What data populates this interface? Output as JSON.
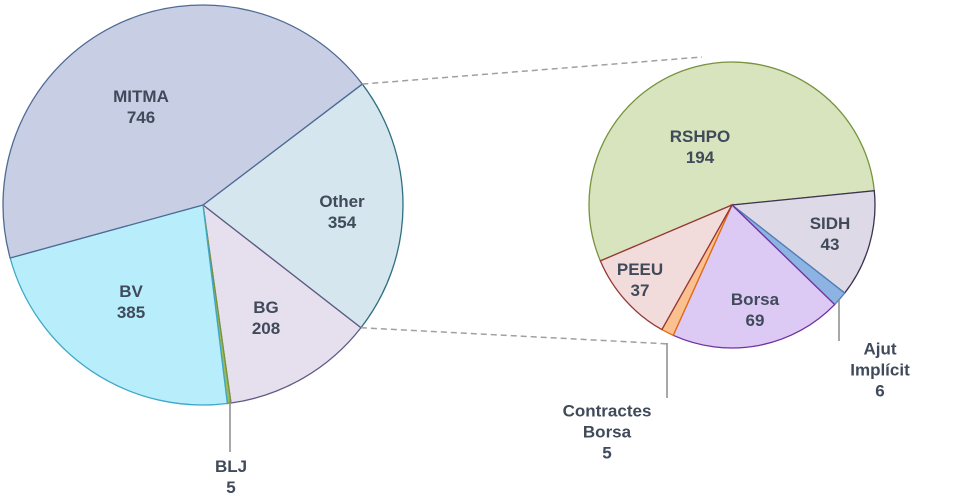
{
  "chart_data": [
    {
      "type": "pie",
      "categories": [
        "Other",
        "BG",
        "BLJ",
        "BV",
        "MITMA"
      ],
      "values": [
        354,
        208,
        5,
        385,
        746
      ],
      "colors": [
        "#d5e6ee",
        "#e6e0ee",
        "#9bbb59",
        "#b8eefc",
        "#c8cfe5"
      ],
      "strokes": [
        "#2f6f80",
        "#5f5a82",
        "#77933c",
        "#3fa8c8",
        "#4f6a94"
      ]
    },
    {
      "type": "pie",
      "categories": [
        "RSHPO",
        "SIDH",
        "Ajut Implícit",
        "Borsa",
        "Contractes Borsa",
        "PEEU"
      ],
      "values": [
        194,
        43,
        6,
        69,
        5,
        37
      ],
      "colors": [
        "#d7e4bd",
        "#ddd9e7",
        "#8db3e2",
        "#dccaf5",
        "#fac090",
        "#f2dcdb"
      ],
      "strokes": [
        "#77933c",
        "#3f3151",
        "#4f81bd",
        "#7030a0",
        "#e46c0a",
        "#953735"
      ]
    }
  ]
}
